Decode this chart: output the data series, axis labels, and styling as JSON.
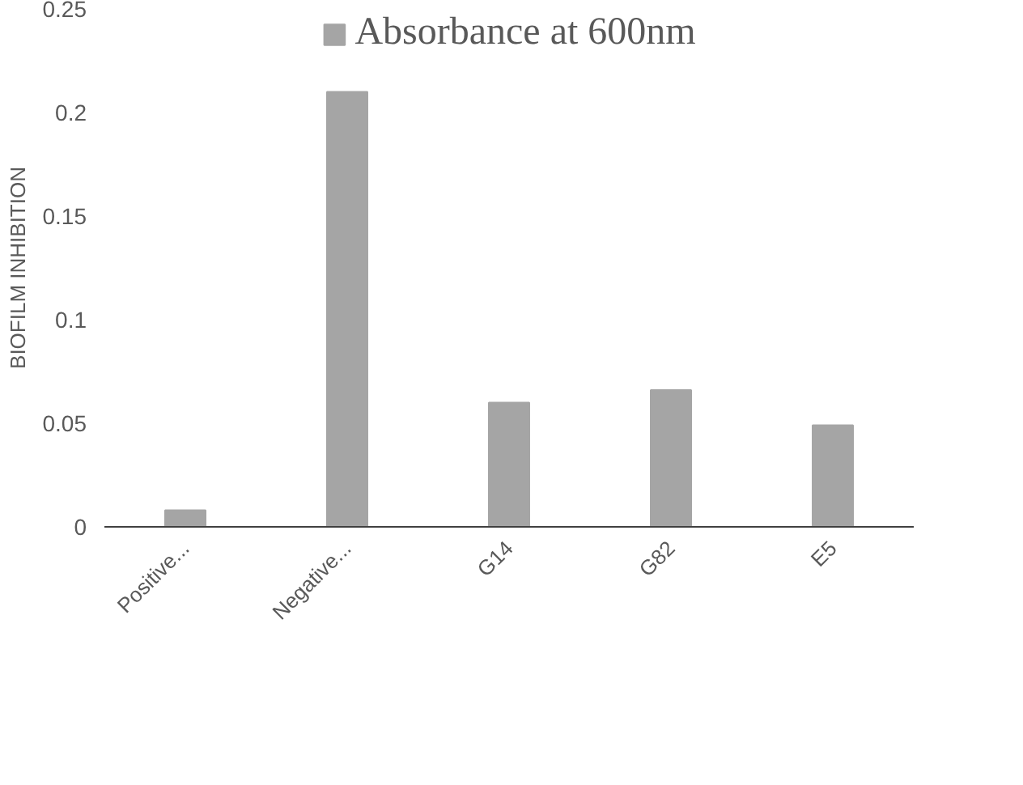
{
  "chart_data": {
    "type": "bar",
    "ylabel": "BIOFILM INHIBITION",
    "categories": [
      "Positive...",
      "Negative...",
      "G14",
      "G82",
      "E5"
    ],
    "series": [
      {
        "name": "Absorbance at 600nm",
        "color": "#a5a5a5",
        "values": [
          0.008,
          0.21,
          0.06,
          0.066,
          0.049
        ]
      }
    ],
    "ylim": [
      0,
      0.25
    ],
    "yticks": [
      0,
      0.05,
      0.1,
      0.15,
      0.2,
      0.25
    ],
    "grid": false,
    "legend": "top"
  }
}
